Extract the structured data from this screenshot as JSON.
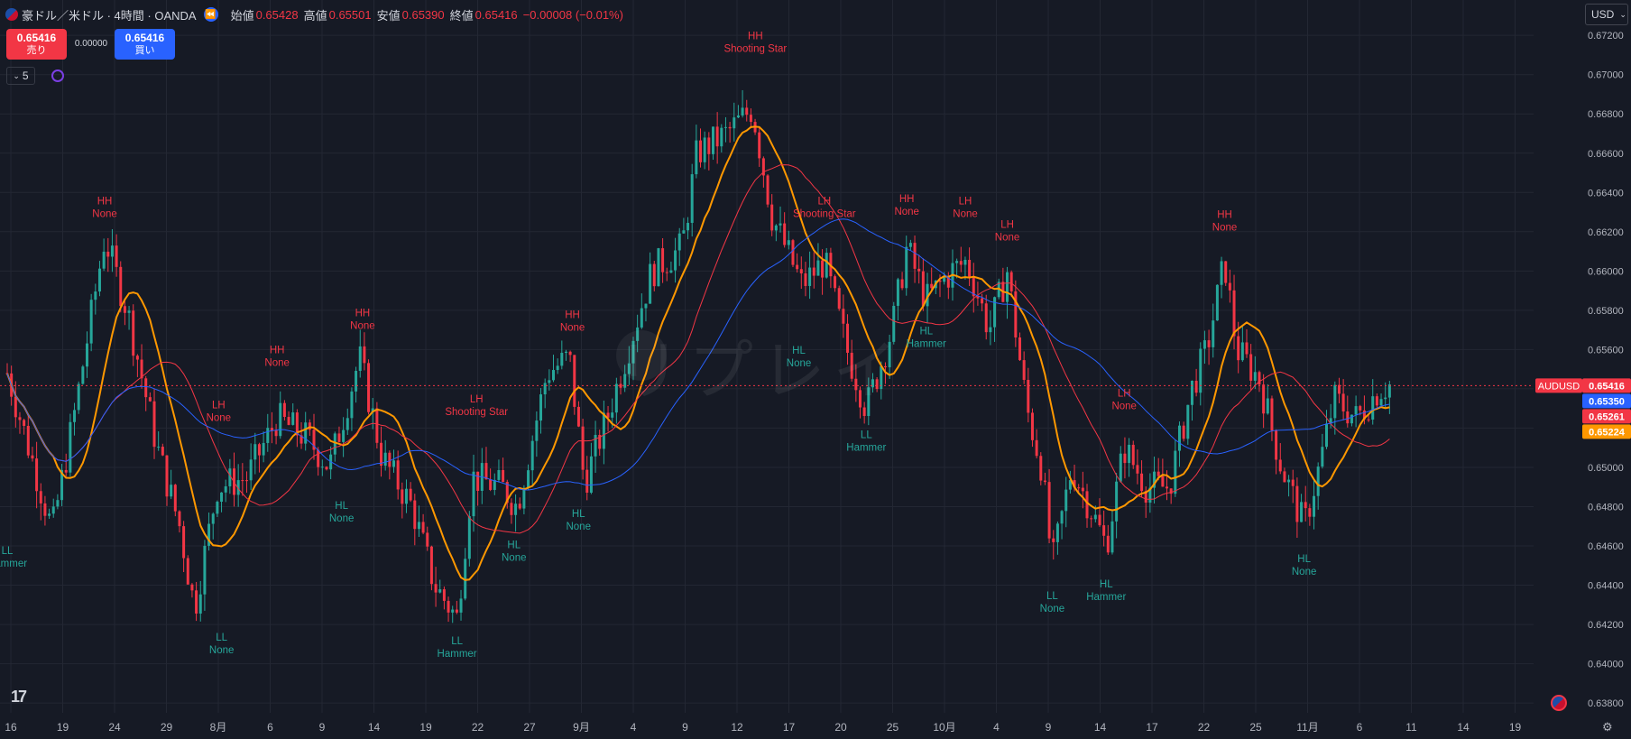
{
  "header": {
    "symbol": "豪ドル／米ドル · 4時間 · OANDA",
    "open_label": "始値",
    "open": "0.65428",
    "high_label": "高値",
    "high": "0.65501",
    "low_label": "安値",
    "low": "0.65390",
    "close_label": "終値",
    "close": "0.65416",
    "change": "−0.00008 (−0.01%)"
  },
  "trade": {
    "sell_price": "0.65416",
    "sell_label": "売り",
    "spread": "0.00000",
    "buy_price": "0.65416",
    "buy_label": "買い"
  },
  "indicators_button": "5",
  "currency": "USD",
  "watermark": "リプレイ",
  "colors": {
    "background": "#161a25",
    "grid": "#232733",
    "up": "#26a69a",
    "down": "#f23645",
    "ma_fast": "#ff9800",
    "ma_mid": "#f23645",
    "ma_slow": "#2962ff",
    "label_high": "#f23645",
    "label_low": "#26a69a"
  },
  "chart_data": {
    "type": "candlestick",
    "symbol_label": "AUDUSD",
    "y_ticks": [
      "0.67200",
      "0.67000",
      "0.66800",
      "0.66600",
      "0.66400",
      "0.66200",
      "0.66000",
      "0.65800",
      "0.65600",
      "0.65400",
      "0.65200",
      "0.65000",
      "0.64800",
      "0.64600",
      "0.64400",
      "0.64200",
      "0.64000",
      "0.63800"
    ],
    "ylim": [
      0.6375,
      0.6738
    ],
    "x_ticks": [
      "16",
      "19",
      "24",
      "29",
      "8月",
      "6",
      "9",
      "14",
      "19",
      "22",
      "27",
      "9月",
      "4",
      "9",
      "12",
      "17",
      "20",
      "25",
      "10月",
      "4",
      "9",
      "14",
      "17",
      "22",
      "25",
      "11月",
      "6",
      "11",
      "14",
      "19"
    ],
    "price_tags": [
      {
        "label": "AUDUSD",
        "value": "0.65416",
        "color": "#f23645"
      },
      {
        "value": "0.65350",
        "color": "#2962ff"
      },
      {
        "value": "0.65261",
        "color": "#f23645"
      },
      {
        "value": "0.65224",
        "color": "#ff9800"
      }
    ],
    "current_price": 0.65416,
    "pivots": [
      {
        "t": 0.0,
        "price": 0.6465,
        "type": "low",
        "tag": "LL",
        "pattern": "Hammer"
      },
      {
        "t": 0.065,
        "price": 0.6623,
        "type": "high",
        "tag": "HH",
        "pattern": "None"
      },
      {
        "t": 0.143,
        "price": 0.6421,
        "type": "low",
        "tag": "LL",
        "pattern": "None"
      },
      {
        "t": 0.141,
        "price": 0.6519,
        "type": "high",
        "tag": "LH",
        "pattern": "None"
      },
      {
        "t": 0.18,
        "price": 0.6547,
        "type": "high",
        "tag": "HH",
        "pattern": "None"
      },
      {
        "t": 0.223,
        "price": 0.6488,
        "type": "low",
        "tag": "HL",
        "pattern": "None"
      },
      {
        "t": 0.237,
        "price": 0.6566,
        "type": "high",
        "tag": "HH",
        "pattern": "None"
      },
      {
        "t": 0.3,
        "price": 0.6419,
        "type": "low",
        "tag": "LL",
        "pattern": "Hammer"
      },
      {
        "t": 0.313,
        "price": 0.6522,
        "type": "high",
        "tag": "LH",
        "pattern": "Shooting Star"
      },
      {
        "t": 0.338,
        "price": 0.6468,
        "type": "low",
        "tag": "HL",
        "pattern": "None"
      },
      {
        "t": 0.377,
        "price": 0.6565,
        "type": "high",
        "tag": "HH",
        "pattern": "None"
      },
      {
        "t": 0.381,
        "price": 0.6484,
        "type": "low",
        "tag": "HL",
        "pattern": "None"
      },
      {
        "t": 0.499,
        "price": 0.6707,
        "type": "high",
        "tag": "HH",
        "pattern": "Shooting Star"
      },
      {
        "t": 0.545,
        "price": 0.6623,
        "type": "high",
        "tag": "LH",
        "pattern": "Shooting Star"
      },
      {
        "t": 0.528,
        "price": 0.6567,
        "type": "low",
        "tag": "HL",
        "pattern": "None"
      },
      {
        "t": 0.573,
        "price": 0.6524,
        "type": "low",
        "tag": "LL",
        "pattern": "Hammer"
      },
      {
        "t": 0.6,
        "price": 0.6624,
        "type": "high",
        "tag": "HH",
        "pattern": "None"
      },
      {
        "t": 0.613,
        "price": 0.6577,
        "type": "low",
        "tag": "HL",
        "pattern": "Hammer"
      },
      {
        "t": 0.639,
        "price": 0.6623,
        "type": "high",
        "tag": "LH",
        "pattern": "None"
      },
      {
        "t": 0.667,
        "price": 0.6611,
        "type": "high",
        "tag": "LH",
        "pattern": "None"
      },
      {
        "t": 0.697,
        "price": 0.6442,
        "type": "low",
        "tag": "LL",
        "pattern": "None"
      },
      {
        "t": 0.733,
        "price": 0.6448,
        "type": "low",
        "tag": "HL",
        "pattern": "Hammer"
      },
      {
        "t": 0.745,
        "price": 0.6525,
        "type": "high",
        "tag": "LH",
        "pattern": "None"
      },
      {
        "t": 0.812,
        "price": 0.6616,
        "type": "high",
        "tag": "HH",
        "pattern": "None"
      },
      {
        "t": 0.865,
        "price": 0.6461,
        "type": "low",
        "tag": "HL",
        "pattern": "None"
      }
    ],
    "series": [
      {
        "name": "ma_fast",
        "color": "#ff9800"
      },
      {
        "name": "ma_mid",
        "color": "#f23645"
      },
      {
        "name": "ma_slow",
        "color": "#2962ff"
      }
    ]
  }
}
